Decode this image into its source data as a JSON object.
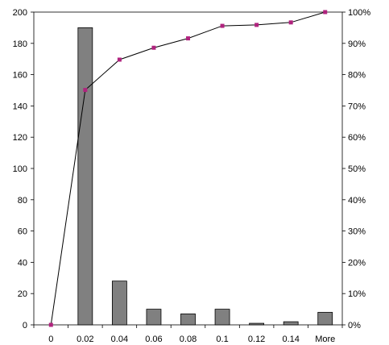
{
  "chart_data": {
    "type": "bar",
    "title": "",
    "xlabel": "",
    "ylabel": "",
    "categories": [
      "0",
      "0.02",
      "0.04",
      "0.06",
      "0.08",
      "0.1",
      "0.12",
      "0.14",
      "More"
    ],
    "series": [
      {
        "type": "bar",
        "axis": "left",
        "values": [
          0,
          190,
          28,
          10,
          7,
          10,
          1,
          2,
          8
        ],
        "color": "#808080"
      },
      {
        "type": "line",
        "axis": "right",
        "values": [
          0,
          75.1,
          84.8,
          88.6,
          91.6,
          95.6,
          95.9,
          96.7,
          100
        ],
        "color": "#000000",
        "marker_color": "#b0237e"
      }
    ],
    "y_left": {
      "min": 0,
      "max": 200,
      "step": 20,
      "ticks": [
        "0",
        "20",
        "40",
        "60",
        "80",
        "100",
        "120",
        "140",
        "160",
        "180",
        "200"
      ]
    },
    "y_right": {
      "min": 0,
      "max": 100,
      "step": 10,
      "ticks": [
        "0%",
        "10%",
        "20%",
        "30%",
        "40%",
        "50%",
        "60%",
        "70%",
        "80%",
        "90%",
        "100%"
      ]
    },
    "legend": "none",
    "grid": false
  }
}
